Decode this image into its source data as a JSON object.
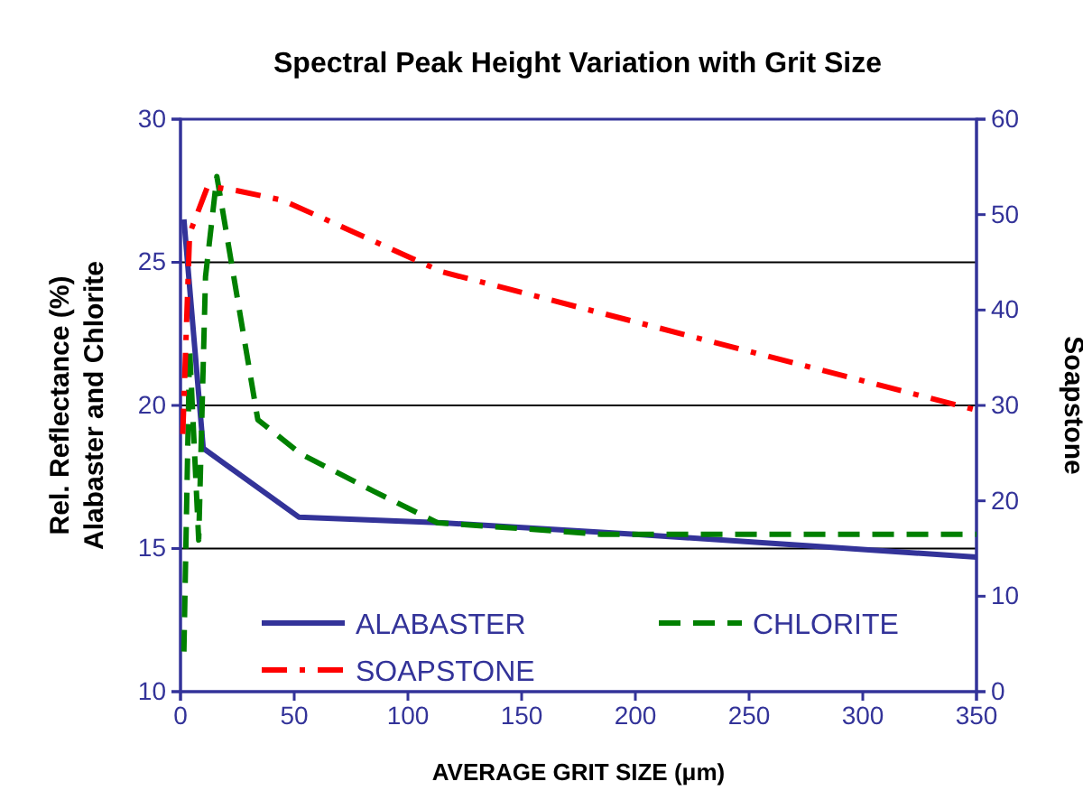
{
  "chart_data": {
    "type": "line",
    "title": "Spectral Peak Height Variation with Grit Size",
    "xlabel": "AVERAGE GRIT SIZE (μm)",
    "ylabel": "Rel. Reflectance (%)\nAlabaster and Chlorite",
    "y2label": "Soapstone",
    "xlim": [
      0,
      350
    ],
    "xticks": [
      0,
      50,
      100,
      150,
      200,
      250,
      300,
      350
    ],
    "ylim": [
      10,
      30
    ],
    "yticks": [
      10,
      15,
      20,
      25,
      30
    ],
    "y2lim": [
      0,
      60
    ],
    "y2ticks": [
      0,
      10,
      20,
      30,
      40,
      50,
      60
    ],
    "grid": "y",
    "legend": "bottom left",
    "marker": "none",
    "series": [
      {
        "name": "ALABASTER",
        "color": "#333399",
        "line_style": "solid",
        "x": [
          1.5,
          10,
          52,
          115,
          200,
          275,
          350
        ],
        "values": [
          26.5,
          18.5,
          16.1,
          15.9,
          15.5,
          15.1,
          14.7
        ]
      },
      {
        "name": "CHLORITE",
        "color": "#008000",
        "line_style": "dashed",
        "x": [
          1.5,
          4,
          8,
          11,
          16,
          34,
          53,
          85,
          113,
          185,
          350
        ],
        "values": [
          11.4,
          22,
          15.3,
          24.5,
          28,
          19.5,
          18.3,
          17,
          15.9,
          15.5,
          15.5
        ]
      },
      {
        "name": "SOAPSTONE",
        "color": "#ff0000",
        "line_style": "dashdot",
        "axis": "y2",
        "x": [
          1,
          4,
          12,
          25,
          45,
          115,
          350
        ],
        "values": [
          27,
          48,
          53,
          52.5,
          51.5,
          44,
          29.5
        ]
      }
    ]
  }
}
